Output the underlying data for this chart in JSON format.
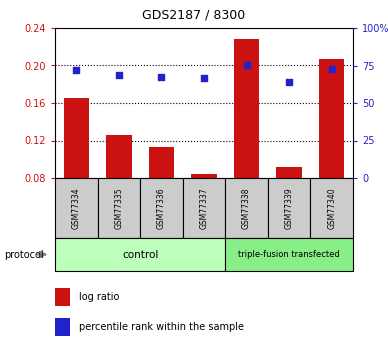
{
  "title": "GDS2187 / 8300",
  "samples": [
    "GSM77334",
    "GSM77335",
    "GSM77336",
    "GSM77337",
    "GSM77338",
    "GSM77339",
    "GSM77340"
  ],
  "log_ratio": [
    0.165,
    0.126,
    0.113,
    0.084,
    0.228,
    0.092,
    0.207
  ],
  "percentile_rank": [
    72,
    69,
    67.5,
    66.5,
    75.5,
    64,
    73
  ],
  "bar_bottom": 0.08,
  "ylim_left": [
    0.08,
    0.24
  ],
  "ylim_right": [
    0,
    100
  ],
  "yticks_left": [
    0.08,
    0.12,
    0.16,
    0.2,
    0.24
  ],
  "ytick_labels_left": [
    "0.08",
    "0.12",
    "0.16",
    "0.20",
    "0.24"
  ],
  "yticks_right": [
    0,
    25,
    50,
    75,
    100
  ],
  "ytick_labels_right": [
    "0",
    "25",
    "50",
    "75",
    "100%"
  ],
  "bar_color": "#cc1111",
  "dot_color": "#2222cc",
  "bar_width": 0.6,
  "n_control": 4,
  "n_triple": 3,
  "control_label": "control",
  "triple_label": "triple-fusion transfected",
  "protocol_label": "protocol",
  "legend_bar_label": "log ratio",
  "legend_dot_label": "percentile rank within the sample",
  "bg_color": "#ffffff",
  "sample_box_color": "#cccccc",
  "control_box_color": "#bbffbb",
  "triple_box_color": "#88ee88",
  "grid_yticks": [
    0.12,
    0.16,
    0.2
  ]
}
